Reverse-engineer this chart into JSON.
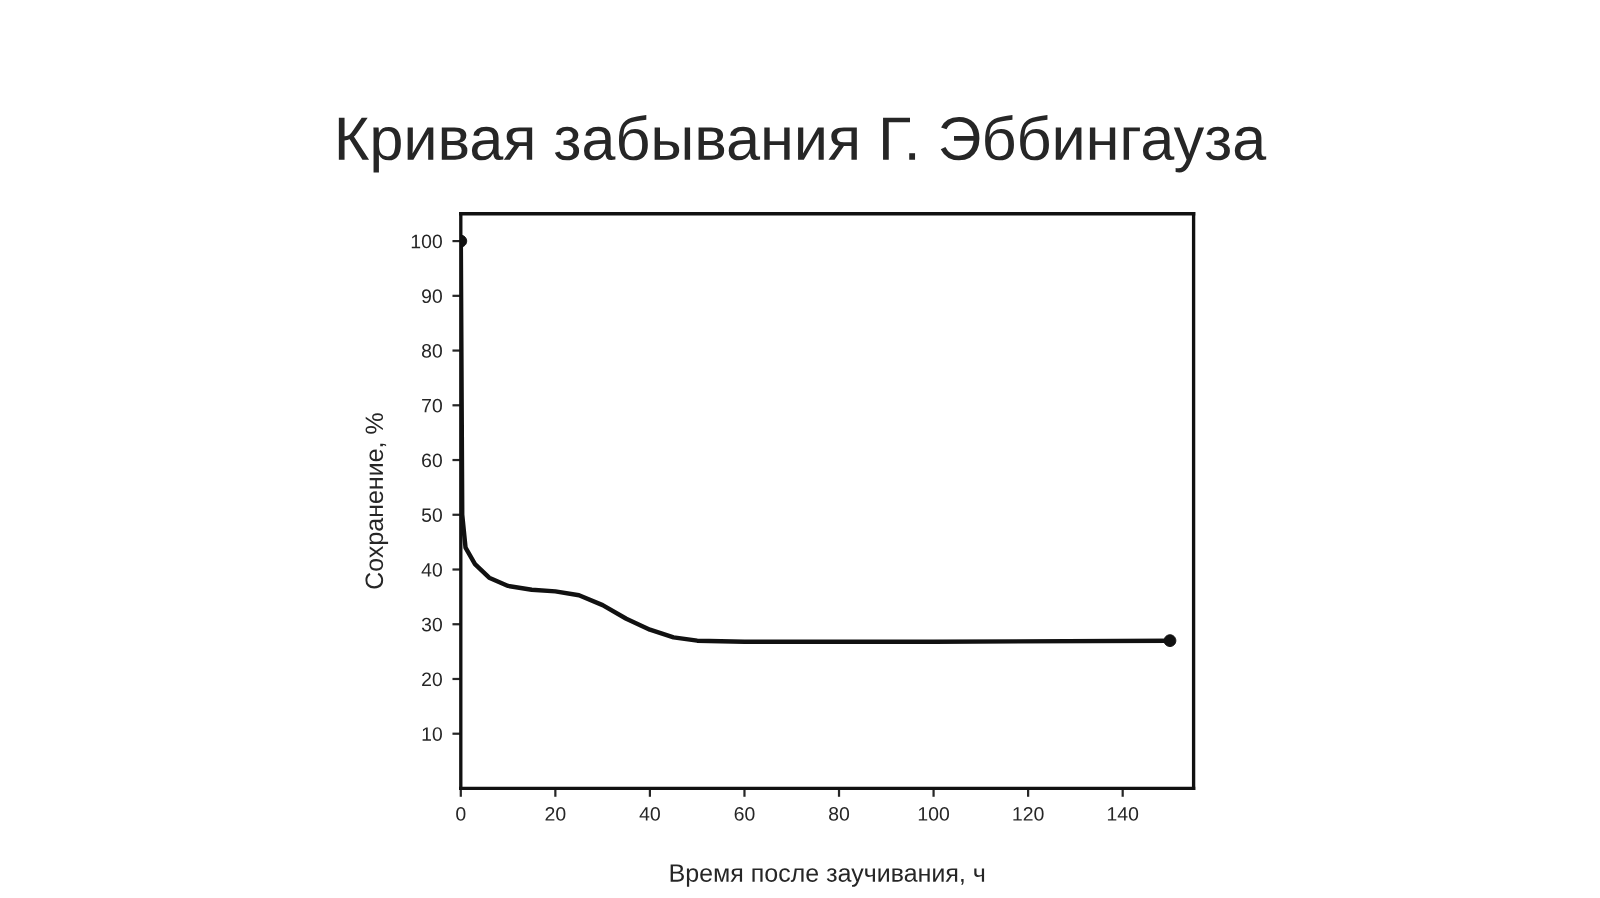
{
  "chart_data": {
    "type": "line",
    "title": "Кривая забывания Г. Эббингауза",
    "xlabel": "Время после заучивания, ч",
    "ylabel": "Сохранение, %",
    "xlim": [
      0,
      155
    ],
    "xticks": [
      0,
      20,
      40,
      60,
      80,
      100,
      120,
      140
    ],
    "ylim": [
      0,
      105
    ],
    "yticks": [
      10,
      20,
      30,
      40,
      50,
      60,
      70,
      80,
      90,
      100
    ],
    "grid": false,
    "legend": false,
    "line_style": "solid",
    "series": [
      {
        "color": "#111111",
        "marker": "none",
        "x": [
          0,
          0.3,
          1,
          3,
          6,
          10,
          15,
          20,
          25,
          30,
          35,
          40,
          45,
          50,
          60,
          100,
          150
        ],
        "values": [
          100,
          50,
          44,
          41,
          38.5,
          37,
          36.3,
          36,
          35.3,
          33.5,
          31,
          29,
          27.6,
          27,
          26.8,
          26.8,
          27
        ]
      },
      {
        "type": "scatter",
        "color": "#111111",
        "marker": "circle",
        "x": [
          0,
          150
        ],
        "values": [
          100,
          27
        ]
      }
    ]
  }
}
